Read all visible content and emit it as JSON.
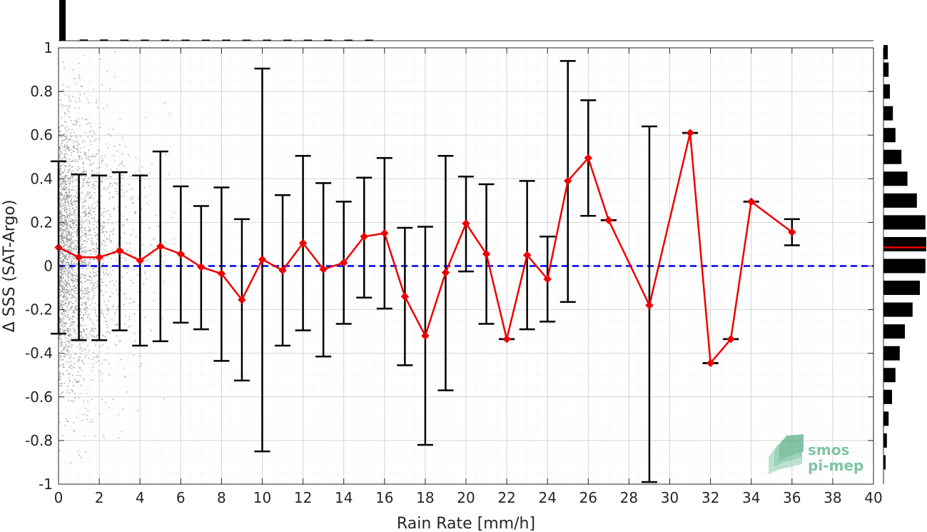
{
  "chart_data": {
    "type": "scatter",
    "title": "",
    "xlabel": "Rain Rate [mm/h]",
    "ylabel": "Δ SSS (SAT-Argo)",
    "xlim": [
      0,
      40
    ],
    "ylim": [
      -1,
      1
    ],
    "xticks": [
      "0",
      "2",
      "4",
      "6",
      "8",
      "10",
      "12",
      "14",
      "16",
      "18",
      "20",
      "22",
      "24",
      "26",
      "28",
      "30",
      "32",
      "34",
      "36",
      "38",
      "40"
    ],
    "yticks": [
      "-1",
      "-0.8",
      "-0.6",
      "-0.4",
      "-0.2",
      "0",
      "0.2",
      "0.4",
      "0.6",
      "0.8",
      "1"
    ],
    "grid": true,
    "reference_line": {
      "y": 0,
      "color": "#0000ee",
      "style": "dashed"
    },
    "series": [
      {
        "color": "#ee0000",
        "marker": "diamond",
        "points": [
          {
            "x": 0,
            "y": 0.085,
            "low": -0.31,
            "high": 0.48
          },
          {
            "x": 1,
            "y": 0.04,
            "low": -0.34,
            "high": 0.42
          },
          {
            "x": 2,
            "y": 0.04,
            "low": -0.34,
            "high": 0.415
          },
          {
            "x": 3,
            "y": 0.07,
            "low": -0.295,
            "high": 0.43
          },
          {
            "x": 4,
            "y": 0.025,
            "low": -0.365,
            "high": 0.415
          },
          {
            "x": 5,
            "y": 0.09,
            "low": -0.345,
            "high": 0.525
          },
          {
            "x": 6,
            "y": 0.055,
            "low": -0.26,
            "high": 0.365
          },
          {
            "x": 7,
            "y": -0.005,
            "low": -0.29,
            "high": 0.275
          },
          {
            "x": 8,
            "y": -0.035,
            "low": -0.435,
            "high": 0.36
          },
          {
            "x": 9,
            "y": -0.155,
            "low": -0.525,
            "high": 0.215
          },
          {
            "x": 10,
            "y": 0.03,
            "low": -0.85,
            "high": 0.905
          },
          {
            "x": 11,
            "y": -0.02,
            "low": -0.365,
            "high": 0.325
          },
          {
            "x": 12,
            "y": 0.105,
            "low": -0.295,
            "high": 0.505
          },
          {
            "x": 13,
            "y": -0.015,
            "low": -0.415,
            "high": 0.38
          },
          {
            "x": 14,
            "y": 0.015,
            "low": -0.265,
            "high": 0.295
          },
          {
            "x": 15,
            "y": 0.135,
            "low": -0.145,
            "high": 0.405
          },
          {
            "x": 16,
            "y": 0.15,
            "low": -0.195,
            "high": 0.495
          },
          {
            "x": 17,
            "y": -0.14,
            "low": -0.455,
            "high": 0.175
          },
          {
            "x": 18,
            "y": -0.32,
            "low": -0.82,
            "high": 0.18
          },
          {
            "x": 19,
            "y": -0.03,
            "low": -0.57,
            "high": 0.505
          },
          {
            "x": 20,
            "y": 0.195,
            "low": -0.025,
            "high": 0.41
          },
          {
            "x": 21,
            "y": 0.055,
            "low": -0.265,
            "high": 0.375
          },
          {
            "x": 22,
            "y": -0.335,
            "low": -0.335,
            "high": -0.335
          },
          {
            "x": 23,
            "y": 0.05,
            "low": -0.29,
            "high": 0.39
          },
          {
            "x": 24,
            "y": -0.06,
            "low": -0.255,
            "high": 0.135
          },
          {
            "x": 25,
            "y": 0.39,
            "low": -0.165,
            "high": 0.94
          },
          {
            "x": 26,
            "y": 0.495,
            "low": 0.23,
            "high": 0.76
          },
          {
            "x": 27,
            "y": 0.21,
            "low": 0.21,
            "high": 0.21
          },
          {
            "x": 29,
            "y": -0.18,
            "low": -0.99,
            "high": 0.64
          },
          {
            "x": 31,
            "y": 0.61,
            "low": 0.61,
            "high": 0.61
          },
          {
            "x": 32,
            "y": -0.445,
            "low": -0.445,
            "high": -0.445
          },
          {
            "x": 33,
            "y": -0.335,
            "low": -0.335,
            "high": -0.335
          },
          {
            "x": 34,
            "y": 0.295,
            "low": 0.295,
            "high": 0.295
          },
          {
            "x": 36,
            "y": 0.155,
            "low": 0.095,
            "high": 0.215
          }
        ]
      }
    ],
    "scatter_background": {
      "color": "#8c8c8c",
      "x_range": [
        0,
        10
      ],
      "note_density": "decreasing with rain rate"
    },
    "top_histogram": {
      "bins_x": [
        0,
        1,
        2,
        3,
        4,
        5,
        6,
        7,
        8,
        9,
        10,
        11,
        12,
        13,
        14,
        15
      ],
      "relative_counts": [
        1.0,
        0.03,
        0.03,
        0.02,
        0.02,
        0.02,
        0.015,
        0.012,
        0.01,
        0.01,
        0.01,
        0.008,
        0.008,
        0.007,
        0.006,
        0.005
      ]
    },
    "right_histogram": {
      "bins_y": [
        0.98,
        0.9,
        0.8,
        0.7,
        0.6,
        0.5,
        0.4,
        0.3,
        0.2,
        0.1,
        0.0,
        -0.1,
        -0.2,
        -0.3,
        -0.4,
        -0.5,
        -0.6,
        -0.7,
        -0.8,
        -0.9
      ],
      "relative_counts": [
        0.1,
        0.12,
        0.15,
        0.22,
        0.28,
        0.42,
        0.56,
        0.78,
        0.98,
        1.0,
        0.98,
        0.85,
        0.68,
        0.5,
        0.38,
        0.28,
        0.2,
        0.12,
        0.08,
        0.05
      ],
      "mean_line": {
        "y": 0.085,
        "color": "#ee0000"
      }
    }
  },
  "logo": {
    "line1": "smos",
    "line2": "pi-mep"
  }
}
